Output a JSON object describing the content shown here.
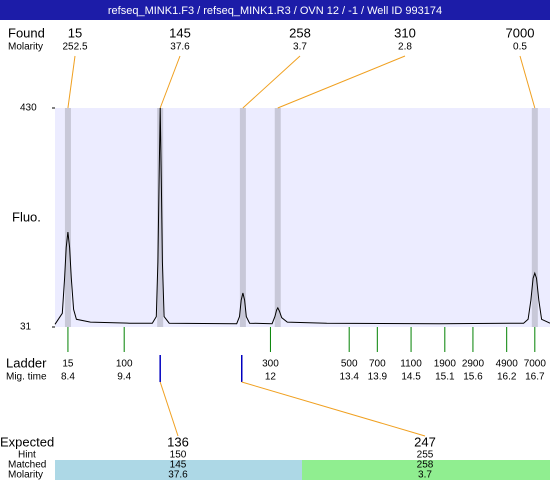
{
  "chart_data": {
    "type": "line",
    "title": "refseq_MINK1.F3 / refseq_MINK1.R3 / OVN 12 / -1 / Well ID 993174",
    "found_label": "Found",
    "molarity_label": "Molarity",
    "y_label": "Fluo.",
    "ladder_label": "Ladder",
    "migtime_label": "Mig. time",
    "expected_label": "Expected",
    "hint_label": "Hint",
    "matched_label": "Matched",
    "molarity2_label": "Molarity",
    "xlim": [
      8.17,
      16.97
    ],
    "ylim": [
      31,
      430
    ],
    "yticks": [
      31,
      430
    ],
    "colors": {
      "trace": "#000000",
      "band": "#c8c8d8",
      "plot": "#ececff",
      "connector": "#f0a020",
      "ladder": "#008000",
      "expected": "#0000c0",
      "title_bar": "#1c1ca8"
    },
    "found": [
      {
        "size": 15,
        "molarity": 252.5,
        "time": 8.4
      },
      {
        "size": 145,
        "molarity": 37.6,
        "time": 10.04
      },
      {
        "size": 258,
        "molarity": 3.7,
        "time": 11.51
      },
      {
        "size": 310,
        "molarity": 2.8,
        "time": 12.13
      },
      {
        "size": 7000,
        "molarity": 0.5,
        "time": 16.7
      }
    ],
    "ladder": {
      "sizes": [
        15,
        100,
        300,
        500,
        700,
        1100,
        1900,
        2900,
        4900,
        7000
      ],
      "times": [
        8.4,
        9.4,
        12,
        13.4,
        13.9,
        14.5,
        15.1,
        15.6,
        16.2,
        16.7
      ]
    },
    "expected": [
      {
        "size": 136,
        "hint": 150,
        "matched": 145,
        "molarity": 37.6,
        "time": 10.04,
        "color": "#add8e6"
      },
      {
        "size": 247,
        "hint": 255,
        "matched": 258,
        "molarity": 3.7,
        "time": 11.49,
        "color": "#90ee90"
      }
    ],
    "x": [
      8.17,
      8.3,
      8.34,
      8.37,
      8.4,
      8.43,
      8.46,
      8.5,
      8.55,
      8.8,
      9.5,
      9.9,
      9.97,
      10.0,
      10.02,
      10.04,
      10.06,
      10.08,
      10.11,
      10.2,
      11.4,
      11.45,
      11.48,
      11.51,
      11.54,
      11.57,
      11.63,
      12.03,
      12.08,
      12.11,
      12.13,
      12.16,
      12.2,
      12.3,
      13,
      15,
      16.5,
      16.58,
      16.63,
      16.67,
      16.7,
      16.73,
      16.77,
      16.82,
      16.97
    ],
    "values": [
      36,
      56,
      120,
      176,
      204,
      176,
      120,
      63,
      45,
      40,
      38,
      38,
      50,
      150,
      300,
      430,
      300,
      150,
      50,
      38,
      37,
      50,
      80,
      93,
      80,
      50,
      38,
      37,
      50,
      62,
      66,
      60,
      48,
      40,
      38,
      37,
      38,
      45,
      80,
      120,
      129,
      120,
      80,
      45,
      38
    ]
  }
}
